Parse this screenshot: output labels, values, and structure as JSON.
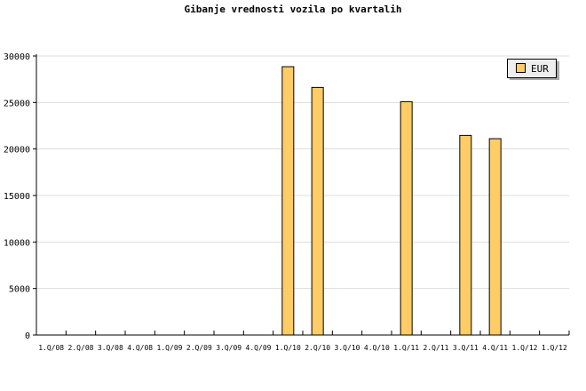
{
  "chart_data": {
    "type": "bar",
    "title": "Gibanje vrednosti vozila po kvartalih",
    "categories": [
      "1.Q/08",
      "2.Q/08",
      "3.Q/08",
      "4.Q/08",
      "1.Q/09",
      "2.Q/09",
      "3.Q/09",
      "4.Q/09",
      "1.Q/10",
      "2.Q/10",
      "3.Q/10",
      "4.Q/10",
      "1.Q/11",
      "2.Q/11",
      "3.Q/11",
      "4.Q/11",
      "1.Q/12",
      "1.Q/12"
    ],
    "series": [
      {
        "name": "EUR",
        "color": "#ffcc66",
        "values": [
          null,
          null,
          null,
          null,
          null,
          null,
          null,
          null,
          28850,
          26620,
          null,
          null,
          25090,
          null,
          21460,
          21110,
          null,
          null
        ]
      }
    ],
    "ylim": [
      0,
      30000
    ],
    "yticks": [
      0,
      5000,
      10000,
      15000,
      20000,
      25000,
      30000
    ],
    "grid": true,
    "legend": "top-right",
    "xlabel": "",
    "ylabel": ""
  }
}
